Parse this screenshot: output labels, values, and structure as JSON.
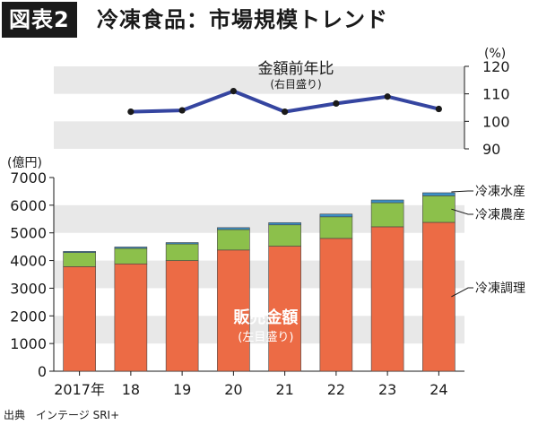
{
  "header": {
    "badge": "図表2",
    "title": "冷凍食品：市場規模トレンド"
  },
  "source": "出典　インテージ SRI+",
  "colors": {
    "chourihin": "#ec6b45",
    "nousan": "#8cc04b",
    "suisan": "#3c8fc6",
    "line": "#3545a0",
    "band": "#e8e8e8",
    "text": "#1a1a1a"
  },
  "chart_data": [
    {
      "type": "line",
      "title": "金額前年比",
      "subtitle": "(右目盛り)",
      "y_unit": "(%)",
      "x": [
        "2017年",
        "18",
        "19",
        "20",
        "21",
        "22",
        "23",
        "24"
      ],
      "series": [
        {
          "values": [
            null,
            103.5,
            104,
            111,
            103.5,
            106.5,
            109,
            104.5
          ]
        }
      ],
      "ylim": [
        90,
        120
      ],
      "yticks": [
        90,
        100,
        110,
        120
      ],
      "grid": "alternating bands"
    },
    {
      "type": "bar",
      "stacked": true,
      "y_unit": "(億円)",
      "categories": [
        "2017年",
        "18",
        "19",
        "20",
        "21",
        "22",
        "23",
        "24"
      ],
      "series": [
        {
          "name": "冷凍調理",
          "values": [
            3780,
            3880,
            4000,
            4380,
            4520,
            4800,
            5220,
            5380
          ]
        },
        {
          "name": "冷凍農産",
          "values": [
            510,
            560,
            600,
            740,
            770,
            780,
            870,
            960
          ]
        },
        {
          "name": "冷凍水産",
          "values": [
            40,
            50,
            50,
            70,
            80,
            100,
            100,
            110
          ]
        }
      ],
      "ylim": [
        0,
        7000
      ],
      "yticks": [
        0,
        1000,
        2000,
        3000,
        4000,
        5000,
        6000,
        7000
      ],
      "annotation": {
        "label": "販売金額",
        "sublabel": "(左目盛り)"
      },
      "legend": "right"
    }
  ]
}
